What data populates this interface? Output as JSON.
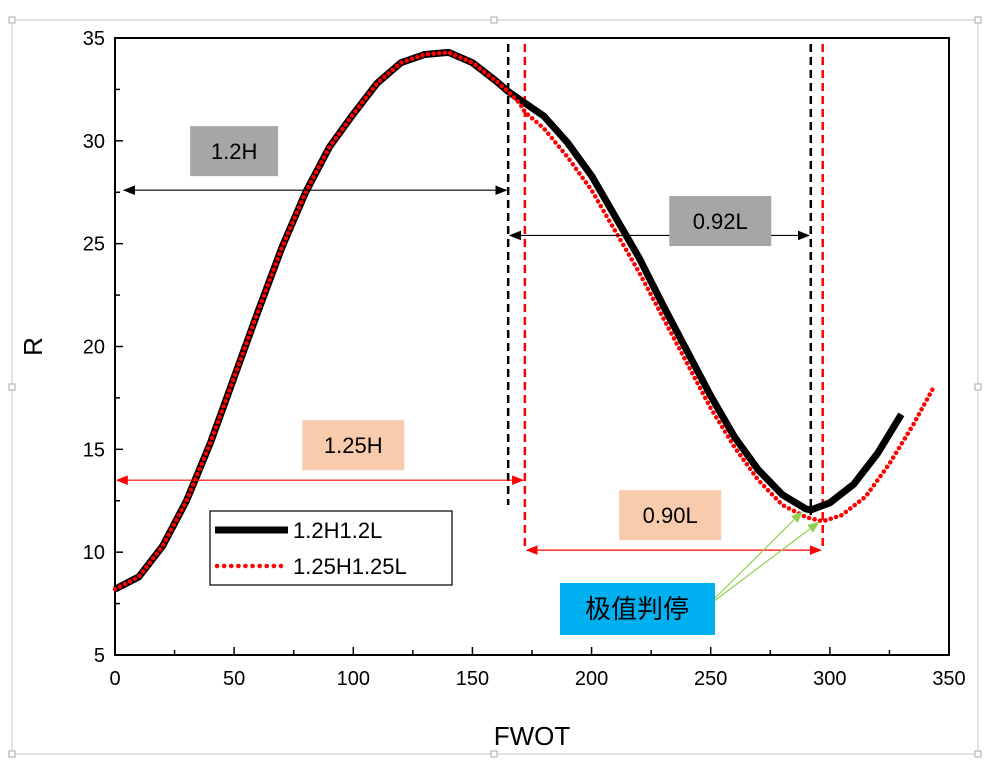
{
  "chart_data": {
    "type": "line",
    "xlabel": "FWOT",
    "ylabel": "R",
    "xlim": [
      0,
      350
    ],
    "ylim": [
      5,
      35
    ],
    "xticks": [
      "0",
      "50",
      "100",
      "150",
      "200",
      "250",
      "300",
      "350"
    ],
    "yticks": [
      "5",
      "10",
      "15",
      "20",
      "25",
      "30",
      "35"
    ],
    "grid": false,
    "legend_placement": "bottom-left",
    "series": [
      {
        "name": "1.2H1.2L",
        "color": "#000000",
        "style": "solid",
        "x": [
          0,
          10,
          20,
          30,
          40,
          50,
          60,
          70,
          80,
          90,
          100,
          110,
          120,
          130,
          140,
          150,
          160,
          165,
          170,
          180,
          190,
          200,
          210,
          220,
          230,
          240,
          250,
          260,
          270,
          280,
          290,
          292,
          300,
          310,
          320,
          330
        ],
        "y": [
          8.2,
          8.8,
          10.3,
          12.5,
          15.3,
          18.5,
          21.7,
          24.8,
          27.5,
          29.7,
          31.3,
          32.8,
          33.8,
          34.2,
          34.3,
          33.8,
          32.9,
          32.4,
          32.0,
          31.2,
          29.9,
          28.3,
          26.3,
          24.3,
          22.0,
          19.8,
          17.6,
          15.6,
          14.0,
          12.8,
          12.1,
          12.05,
          12.4,
          13.3,
          14.8,
          16.7
        ]
      },
      {
        "name": "1.25H1.25L",
        "color": "#ff0000",
        "style": "dotted",
        "x": [
          0,
          10,
          20,
          30,
          40,
          50,
          60,
          70,
          80,
          90,
          100,
          110,
          120,
          130,
          140,
          150,
          160,
          165,
          170,
          172,
          180,
          190,
          200,
          210,
          220,
          230,
          240,
          250,
          260,
          270,
          280,
          290,
          297,
          305,
          315,
          325,
          335,
          343
        ],
        "y": [
          8.2,
          8.8,
          10.3,
          12.5,
          15.3,
          18.5,
          21.7,
          24.8,
          27.5,
          29.7,
          31.3,
          32.8,
          33.8,
          34.2,
          34.3,
          33.8,
          32.9,
          32.4,
          31.8,
          31.4,
          30.6,
          29.2,
          27.6,
          25.6,
          23.6,
          21.4,
          19.2,
          17.0,
          15.1,
          13.5,
          12.3,
          11.7,
          11.5,
          11.8,
          12.7,
          14.3,
          16.2,
          17.9
        ]
      }
    ],
    "vertical_lines": [
      {
        "x": 165,
        "color": "#000000"
      },
      {
        "x": 292,
        "color": "#000000"
      },
      {
        "x": 172,
        "color": "#ff0000"
      },
      {
        "x": 297,
        "color": "#ff0000"
      }
    ],
    "annotations": [
      {
        "text": "1.2H",
        "x1": 3,
        "x2": 165,
        "y": 27.6,
        "arrow_color": "#000000",
        "box_color": "#a6a6a6",
        "label_x": 50,
        "label_y": 29.5
      },
      {
        "text": "0.92L",
        "x1": 165,
        "x2": 292,
        "y": 25.4,
        "arrow_color": "#000000",
        "box_color": "#a6a6a6",
        "label_x": 254,
        "label_y": 26.1
      },
      {
        "text": "1.25H",
        "x1": 0,
        "x2": 172,
        "y": 13.5,
        "arrow_color": "#ff0000",
        "box_color": "#f8cbad",
        "label_x": 100,
        "label_y": 15.2
      },
      {
        "text": "0.90L",
        "x1": 172,
        "x2": 297,
        "y": 10.1,
        "arrow_color": "#ff0000",
        "box_color": "#f8cbad",
        "label_x": 233,
        "label_y": 11.8
      }
    ],
    "callout": {
      "text": "极值判停",
      "box_color": "#00b0f0",
      "arrow_color": "#92d050",
      "targets": [
        [
          290,
          12.1
        ],
        [
          297,
          11.6
        ]
      ]
    }
  }
}
